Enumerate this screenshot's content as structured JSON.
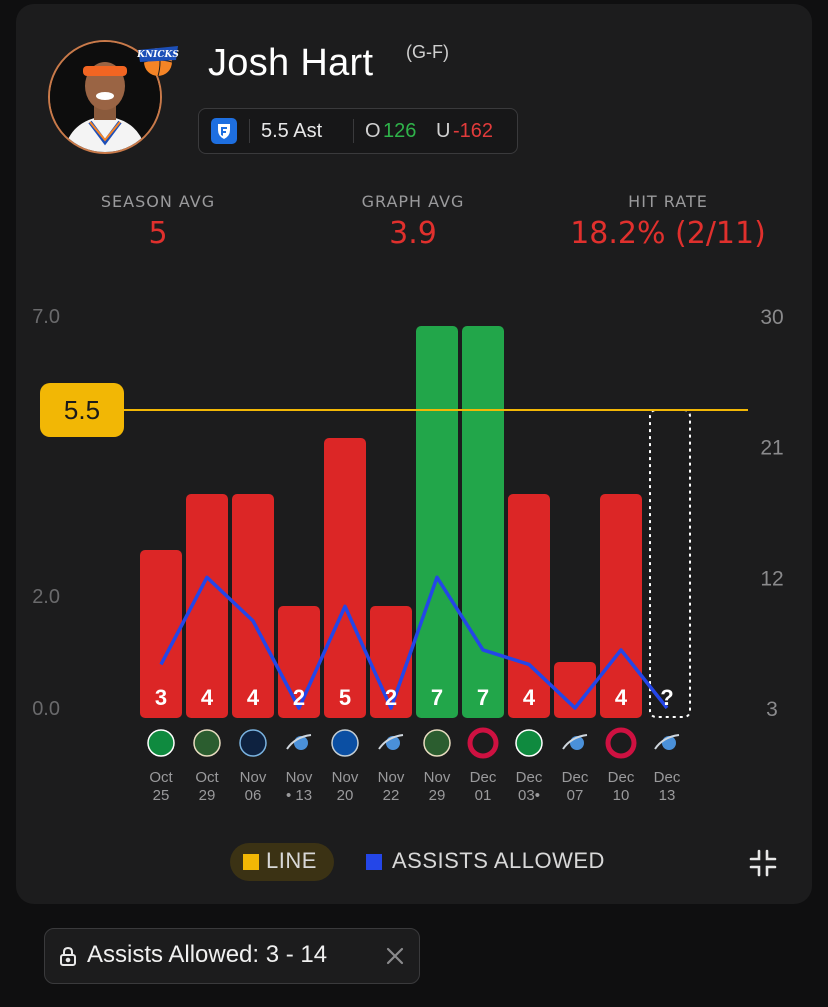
{
  "player": {
    "name": "Josh Hart",
    "position": "(G-F)"
  },
  "prop": {
    "line_text": "5.5 Ast",
    "over_label": "O",
    "over_odds": "126",
    "under_label": "U",
    "under_odds": "-162"
  },
  "stats": {
    "season_avg_label": "SEASON AVG",
    "season_avg_value": "5",
    "graph_avg_label": "GRAPH AVG",
    "graph_avg_value": "3.9",
    "hit_rate_label": "HIT RATE",
    "hit_rate_value": "18.2% (2/11)"
  },
  "colors": {
    "hit": "#22a64a",
    "miss": "#dc2626",
    "line": "#f2b705",
    "assists_allowed": "#2446e8",
    "stat_value": "#e0302d"
  },
  "chart_data": {
    "type": "bar",
    "categories": [
      "Oct 25",
      "Oct 29",
      "Nov 06",
      "Nov 13",
      "Nov 20",
      "Nov 22",
      "Nov 29",
      "Dec 01",
      "Dec 03",
      "Dec 07",
      "Dec 10",
      "Dec 13"
    ],
    "date_labels": [
      [
        "Oct",
        "25"
      ],
      [
        "Oct",
        "29"
      ],
      [
        "Nov",
        "06"
      ],
      [
        "Nov",
        "• 13"
      ],
      [
        "Nov",
        "20"
      ],
      [
        "Nov",
        "22"
      ],
      [
        "Nov",
        "29"
      ],
      [
        "Dec",
        "01"
      ],
      [
        "Dec",
        "03•"
      ],
      [
        "Dec",
        "07"
      ],
      [
        "Dec",
        "10"
      ],
      [
        "Dec",
        "13"
      ]
    ],
    "opponents": [
      "boston-celtics-icon",
      "milwaukee-bucks-icon",
      "minnesota-timberwolves-icon",
      "orlando-magic-icon",
      "dallas-mavericks-icon",
      "orlando-magic-icon",
      "milwaukee-bucks-icon",
      "toronto-raptors-icon",
      "boston-celtics-icon",
      "orlando-magic-icon",
      "toronto-raptors-icon",
      "orlando-magic-icon"
    ],
    "values": [
      3,
      4,
      4,
      2,
      5,
      2,
      7,
      7,
      4,
      1,
      4,
      null
    ],
    "value_labels": [
      "3",
      "4",
      "4",
      "2",
      "5",
      "2",
      "7",
      "7",
      "4",
      "",
      "4",
      "?"
    ],
    "line": 5.5,
    "line_label": "5.5",
    "left_axis": {
      "range": [
        0,
        7
      ],
      "tick_labels": [
        "0.0",
        "2.0",
        "5.",
        "7.0"
      ],
      "tick_values": [
        0,
        2,
        5.25,
        7
      ]
    },
    "right_axis": {
      "range": [
        3,
        30
      ],
      "tick_labels": [
        "3",
        "12",
        "21",
        "30"
      ],
      "tick_values": [
        3,
        12,
        21,
        30
      ]
    },
    "series": [
      {
        "name": "ASSISTS ALLOWED",
        "values": [
          6,
          12,
          9,
          3,
          10,
          3,
          12,
          7,
          6,
          3,
          7,
          3
        ]
      }
    ],
    "legend": [
      "LINE",
      "ASSISTS ALLOWED"
    ],
    "legend_position": "bottom"
  },
  "filter": {
    "text": "Assists Allowed: 3 - 14"
  }
}
